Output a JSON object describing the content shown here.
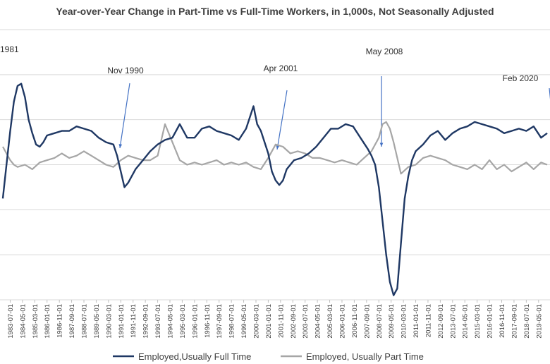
{
  "chart_data": {
    "type": "line",
    "title": "Year-over-Year Change in Part-Time vs Full-Time Workers, in 1,000s, Not Seasonally Adjusted",
    "xlabel": "",
    "ylabel": "",
    "x_tick_labels": [
      "1983-07-01",
      "1984-05-01",
      "1985-03-01",
      "1986-01-01",
      "1986-11-01",
      "1987-09-01",
      "1988-07-01",
      "1989-05-01",
      "1990-03-01",
      "1991-01-01",
      "1991-11-01",
      "1992-09-01",
      "1993-07-01",
      "1994-05-01",
      "1995-03-01",
      "1996-01-01",
      "1996-11-01",
      "1997-09-01",
      "1998-07-01",
      "1999-05-01",
      "2000-03-01",
      "2001-01-01",
      "2001-11-01",
      "2002-09-01",
      "2003-07-01",
      "2004-05-01",
      "2005-03-01",
      "2006-01-01",
      "2006-11-01",
      "2007-09-01",
      "2008-07-01",
      "2009-05-01",
      "2010-03-01",
      "2011-01-01",
      "2011-11-01",
      "2012-09-01",
      "2013-07-01",
      "2014-05-01",
      "2015-03-01",
      "2016-01-01",
      "2016-11-01",
      "2017-09-01",
      "2018-07-01",
      "2019-05-01"
    ],
    "x_range": [
      "1983-01-01",
      "2019-12-01"
    ],
    "y_range": [
      -6,
      6
    ],
    "grid": "horizontal",
    "legend_position": "bottom",
    "series": [
      {
        "name": "Employed,Usually Full Time",
        "color": "#1f3864",
        "points": [
          [
            "1983-01-01",
            -1.5
          ],
          [
            "1983-04-01",
            0.0
          ],
          [
            "1983-07-01",
            1.5
          ],
          [
            "1983-10-01",
            2.8
          ],
          [
            "1984-01-01",
            3.5
          ],
          [
            "1984-04-01",
            3.6
          ],
          [
            "1984-07-01",
            3.0
          ],
          [
            "1984-10-01",
            2.0
          ],
          [
            "1985-01-01",
            1.4
          ],
          [
            "1985-04-01",
            0.9
          ],
          [
            "1985-07-01",
            0.8
          ],
          [
            "1985-10-01",
            1.0
          ],
          [
            "1986-01-01",
            1.3
          ],
          [
            "1986-07-01",
            1.4
          ],
          [
            "1987-01-01",
            1.5
          ],
          [
            "1987-07-01",
            1.5
          ],
          [
            "1988-01-01",
            1.7
          ],
          [
            "1988-07-01",
            1.6
          ],
          [
            "1989-01-01",
            1.5
          ],
          [
            "1989-07-01",
            1.2
          ],
          [
            "1990-01-01",
            1.0
          ],
          [
            "1990-07-01",
            0.9
          ],
          [
            "1990-10-01",
            0.4
          ],
          [
            "1991-01-01",
            -0.3
          ],
          [
            "1991-04-01",
            -1.0
          ],
          [
            "1991-07-01",
            -0.8
          ],
          [
            "1992-01-01",
            -0.2
          ],
          [
            "1992-07-01",
            0.2
          ],
          [
            "1993-01-01",
            0.6
          ],
          [
            "1993-07-01",
            0.9
          ],
          [
            "1994-01-01",
            1.1
          ],
          [
            "1994-07-01",
            1.2
          ],
          [
            "1995-01-01",
            1.8
          ],
          [
            "1995-07-01",
            1.2
          ],
          [
            "1996-01-01",
            1.2
          ],
          [
            "1996-07-01",
            1.6
          ],
          [
            "1997-01-01",
            1.7
          ],
          [
            "1997-07-01",
            1.5
          ],
          [
            "1998-01-01",
            1.4
          ],
          [
            "1998-07-01",
            1.3
          ],
          [
            "1999-01-01",
            1.1
          ],
          [
            "1999-07-01",
            1.6
          ],
          [
            "2000-01-01",
            2.6
          ],
          [
            "2000-04-01",
            1.8
          ],
          [
            "2000-07-01",
            1.5
          ],
          [
            "2001-01-01",
            0.5
          ],
          [
            "2001-04-01",
            -0.3
          ],
          [
            "2001-07-01",
            -0.7
          ],
          [
            "2001-10-01",
            -0.9
          ],
          [
            "2002-01-01",
            -0.7
          ],
          [
            "2002-04-01",
            -0.2
          ],
          [
            "2002-10-01",
            0.2
          ],
          [
            "2003-04-01",
            0.3
          ],
          [
            "2003-10-01",
            0.5
          ],
          [
            "2004-04-01",
            0.8
          ],
          [
            "2004-10-01",
            1.2
          ],
          [
            "2005-04-01",
            1.6
          ],
          [
            "2005-10-01",
            1.6
          ],
          [
            "2006-04-01",
            1.8
          ],
          [
            "2006-10-01",
            1.7
          ],
          [
            "2007-04-01",
            1.2
          ],
          [
            "2007-10-01",
            0.7
          ],
          [
            "2008-01-01",
            0.4
          ],
          [
            "2008-04-01",
            0.0
          ],
          [
            "2008-07-01",
            -1.0
          ],
          [
            "2008-10-01",
            -2.5
          ],
          [
            "2009-01-01",
            -4.0
          ],
          [
            "2009-04-01",
            -5.2
          ],
          [
            "2009-07-01",
            -5.8
          ],
          [
            "2009-10-01",
            -5.5
          ],
          [
            "2010-01-01",
            -3.5
          ],
          [
            "2010-04-01",
            -1.5
          ],
          [
            "2010-07-01",
            -0.5
          ],
          [
            "2010-10-01",
            0.2
          ],
          [
            "2011-01-01",
            0.6
          ],
          [
            "2011-07-01",
            0.9
          ],
          [
            "2012-01-01",
            1.3
          ],
          [
            "2012-07-01",
            1.5
          ],
          [
            "2013-01-01",
            1.1
          ],
          [
            "2013-07-01",
            1.4
          ],
          [
            "2014-01-01",
            1.6
          ],
          [
            "2014-07-01",
            1.7
          ],
          [
            "2015-01-01",
            1.9
          ],
          [
            "2015-07-01",
            1.8
          ],
          [
            "2016-01-01",
            1.7
          ],
          [
            "2016-07-01",
            1.6
          ],
          [
            "2017-01-01",
            1.4
          ],
          [
            "2017-07-01",
            1.5
          ],
          [
            "2018-01-01",
            1.6
          ],
          [
            "2018-07-01",
            1.5
          ],
          [
            "2019-01-01",
            1.7
          ],
          [
            "2019-07-01",
            1.2
          ],
          [
            "2019-12-01",
            1.4
          ]
        ]
      },
      {
        "name": "Employed, Usually Part Time",
        "color": "#a6a6a6",
        "points": [
          [
            "1983-01-01",
            0.8
          ],
          [
            "1983-04-01",
            0.5
          ],
          [
            "1983-07-01",
            0.2
          ],
          [
            "1983-10-01",
            0.0
          ],
          [
            "1984-01-01",
            -0.1
          ],
          [
            "1984-07-01",
            0.0
          ],
          [
            "1985-01-01",
            -0.2
          ],
          [
            "1985-07-01",
            0.1
          ],
          [
            "1986-01-01",
            0.2
          ],
          [
            "1986-07-01",
            0.3
          ],
          [
            "1987-01-01",
            0.5
          ],
          [
            "1987-07-01",
            0.3
          ],
          [
            "1988-01-01",
            0.4
          ],
          [
            "1988-07-01",
            0.6
          ],
          [
            "1989-01-01",
            0.4
          ],
          [
            "1989-07-01",
            0.2
          ],
          [
            "1990-01-01",
            0.0
          ],
          [
            "1990-07-01",
            -0.1
          ],
          [
            "1991-01-01",
            0.2
          ],
          [
            "1991-07-01",
            0.4
          ],
          [
            "1992-01-01",
            0.3
          ],
          [
            "1992-07-01",
            0.2
          ],
          [
            "1993-01-01",
            0.2
          ],
          [
            "1993-07-01",
            0.4
          ],
          [
            "1994-01-01",
            1.8
          ],
          [
            "1994-07-01",
            1.0
          ],
          [
            "1995-01-01",
            0.2
          ],
          [
            "1995-07-01",
            0.0
          ],
          [
            "1996-01-01",
            0.1
          ],
          [
            "1996-07-01",
            0.0
          ],
          [
            "1997-01-01",
            0.1
          ],
          [
            "1997-07-01",
            0.2
          ],
          [
            "1998-01-01",
            0.0
          ],
          [
            "1998-07-01",
            0.1
          ],
          [
            "1999-01-01",
            0.0
          ],
          [
            "1999-07-01",
            0.1
          ],
          [
            "2000-01-01",
            -0.1
          ],
          [
            "2000-07-01",
            -0.2
          ],
          [
            "2001-01-01",
            0.3
          ],
          [
            "2001-07-01",
            0.9
          ],
          [
            "2002-01-01",
            0.8
          ],
          [
            "2002-07-01",
            0.5
          ],
          [
            "2003-01-01",
            0.6
          ],
          [
            "2003-07-01",
            0.5
          ],
          [
            "2004-01-01",
            0.3
          ],
          [
            "2004-07-01",
            0.3
          ],
          [
            "2005-01-01",
            0.2
          ],
          [
            "2005-07-01",
            0.1
          ],
          [
            "2006-01-01",
            0.2
          ],
          [
            "2006-07-01",
            0.1
          ],
          [
            "2007-01-01",
            0.0
          ],
          [
            "2007-07-01",
            0.3
          ],
          [
            "2008-01-01",
            0.6
          ],
          [
            "2008-07-01",
            1.2
          ],
          [
            "2008-10-01",
            1.8
          ],
          [
            "2009-01-01",
            1.9
          ],
          [
            "2009-04-01",
            1.6
          ],
          [
            "2009-07-01",
            1.0
          ],
          [
            "2009-10-01",
            0.3
          ],
          [
            "2010-01-01",
            -0.4
          ],
          [
            "2010-07-01",
            -0.1
          ],
          [
            "2011-01-01",
            0.0
          ],
          [
            "2011-07-01",
            0.3
          ],
          [
            "2012-01-01",
            0.4
          ],
          [
            "2012-07-01",
            0.3
          ],
          [
            "2013-01-01",
            0.2
          ],
          [
            "2013-07-01",
            0.0
          ],
          [
            "2014-01-01",
            -0.1
          ],
          [
            "2014-07-01",
            -0.2
          ],
          [
            "2015-01-01",
            0.0
          ],
          [
            "2015-07-01",
            -0.2
          ],
          [
            "2016-01-01",
            0.2
          ],
          [
            "2016-07-01",
            -0.2
          ],
          [
            "2017-01-01",
            0.0
          ],
          [
            "2017-07-01",
            -0.3
          ],
          [
            "2018-01-01",
            -0.1
          ],
          [
            "2018-07-01",
            0.1
          ],
          [
            "2019-01-01",
            -0.2
          ],
          [
            "2019-07-01",
            0.1
          ],
          [
            "2019-12-01",
            0.0
          ]
        ]
      }
    ],
    "annotations": [
      {
        "label": "1981",
        "date": "1983-01-01"
      },
      {
        "label": "Nov 1990",
        "date": "1990-11-01"
      },
      {
        "label": "Apr 2001",
        "date": "2001-04-01"
      },
      {
        "label": "May 2008",
        "date": "2008-05-01"
      },
      {
        "label": "Feb 2020",
        "date": "2020-02-01"
      }
    ]
  }
}
